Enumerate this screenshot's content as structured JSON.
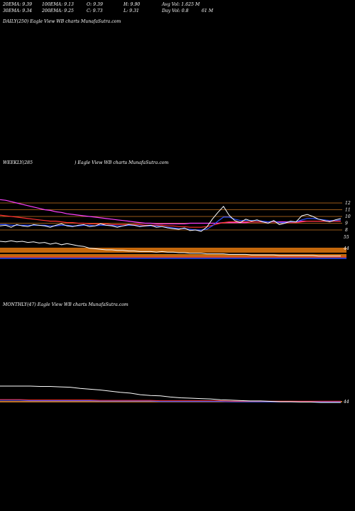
{
  "header": {
    "ema20": "20EMA: 9.39",
    "ema100": "100EMA: 9.13",
    "open": "O: 9.39",
    "high": "H: 9.90",
    "avg_vol": "Avg Vol: 1.625 M",
    "ema30": "30EMA: 9.34",
    "ema200": "200EMA: 9.25",
    "close": "C: 9.73",
    "low": "L: 9.31",
    "day_vol": "Day Vol: 0.8",
    "day_vol_unit": "61 M"
  },
  "panels": {
    "daily_label": "DAILY(250) Eagle  View  WB charts MunafaSutra.com",
    "weekly_label_left": "WEEKLY(285",
    "weekly_label_right": ") Eagle  View  WB charts MunafaSutra.com",
    "monthly_label": "MONTHLY(47) Eagle  View  WB charts MunafaSutra.com"
  },
  "colors": {
    "background": "#000000",
    "price": "#ffffff",
    "ema_blue": "#3050ff",
    "ema_red": "#ff3030",
    "ema_magenta": "#ff40ff",
    "ema_orange": "#ff9933",
    "level_line": "#cc7722"
  },
  "chart_data": [
    {
      "type": "line",
      "panel": "weekly-price",
      "ylabels": [
        "12",
        "11",
        "10",
        "9",
        "8"
      ],
      "yvalues": [
        12,
        11,
        10,
        9,
        8
      ],
      "series": [
        {
          "values": [
            8.6,
            8.7,
            8.4,
            8.8,
            8.6,
            8.5,
            8.8,
            8.7,
            8.6,
            8.4,
            8.7,
            8.9,
            8.6,
            8.5,
            8.7,
            8.8,
            8.5,
            8.6,
            8.9,
            8.7,
            8.6,
            8.4,
            8.6,
            8.8,
            8.7,
            8.5,
            8.6,
            8.7,
            8.4,
            8.5,
            8.3,
            8.2,
            8.1,
            8.3,
            7.9,
            8.0,
            7.8,
            8.4,
            9.6,
            10.6,
            11.5,
            10.2,
            9.4,
            9.1,
            9.6,
            9.3,
            9.5,
            9.2,
            9.0,
            9.4,
            8.8,
            9.0,
            9.3,
            9.2,
            10.1,
            10.3,
            10.0,
            9.6,
            9.4,
            9.2,
            9.5,
            9.7
          ]
        },
        {
          "values": [
            12.5,
            12.4,
            12.2,
            12.0,
            11.8,
            11.6,
            11.4,
            11.2,
            11.0,
            10.9,
            10.7,
            10.6,
            10.4,
            10.3,
            10.2,
            10.1,
            10.0,
            9.9,
            9.8,
            9.7,
            9.6,
            9.5,
            9.4,
            9.3,
            9.2,
            9.1,
            9.0,
            9.0,
            8.9,
            8.9,
            8.9,
            8.9,
            8.9,
            8.9,
            9.0,
            9.0,
            9.0,
            9.0,
            9.0,
            9.0,
            9.1,
            9.1,
            9.1,
            9.1,
            9.1,
            9.2,
            9.2,
            9.2,
            9.2,
            9.2,
            9.2,
            9.2,
            9.2,
            9.2,
            9.3,
            9.3,
            9.3,
            9.3,
            9.3,
            9.3,
            9.3,
            9.3
          ]
        },
        {
          "values": [
            10.2,
            10.1,
            10.0,
            9.9,
            9.8,
            9.7,
            9.6,
            9.5,
            9.4,
            9.3,
            9.3,
            9.2,
            9.1,
            9.1,
            9.0,
            9.0,
            8.9,
            8.9,
            8.9,
            8.9,
            8.8,
            8.8,
            8.8,
            8.8,
            8.8,
            8.8,
            8.7,
            8.7,
            8.7,
            8.7,
            8.6,
            8.6,
            8.5,
            8.5,
            8.4,
            8.4,
            8.4,
            8.5,
            8.7,
            8.9,
            9.1,
            9.2,
            9.2,
            9.2,
            9.2,
            9.2,
            9.2,
            9.2,
            9.2,
            9.2,
            9.1,
            9.1,
            9.1,
            9.1,
            9.2,
            9.3,
            9.3,
            9.3,
            9.3,
            9.3,
            9.3,
            9.3
          ]
        },
        {
          "values": [
            8.8,
            8.8,
            8.7,
            8.7,
            8.7,
            8.7,
            8.7,
            8.7,
            8.7,
            8.6,
            8.6,
            8.7,
            8.7,
            8.6,
            8.6,
            8.7,
            8.7,
            8.6,
            8.7,
            8.7,
            8.7,
            8.6,
            8.6,
            8.7,
            8.7,
            8.6,
            8.6,
            8.6,
            8.6,
            8.5,
            8.4,
            8.3,
            8.2,
            8.2,
            8.1,
            8.0,
            8.0,
            8.1,
            8.6,
            9.3,
            9.9,
            9.9,
            9.6,
            9.4,
            9.4,
            9.4,
            9.4,
            9.3,
            9.2,
            9.3,
            9.1,
            9.1,
            9.2,
            9.2,
            9.5,
            9.7,
            9.7,
            9.6,
            9.5,
            9.4,
            9.4,
            9.5
          ]
        }
      ],
      "levels": [
        12,
        11,
        10,
        9,
        8
      ]
    },
    {
      "type": "line",
      "panel": "weekly-volume",
      "ylabels": [
        "55",
        "44"
      ],
      "series": [
        {
          "values": [
            30,
            29,
            31,
            29,
            30,
            28,
            29,
            27,
            28,
            25,
            27,
            24,
            26,
            24,
            22,
            21,
            18,
            17,
            16,
            15,
            15,
            14,
            14,
            13,
            13,
            12,
            12,
            12,
            11,
            12,
            11,
            11,
            10,
            10,
            9,
            9,
            9,
            8,
            8,
            8,
            8,
            7,
            7,
            7,
            7,
            6,
            6,
            6,
            6,
            6,
            5,
            5,
            5,
            5,
            5,
            5,
            5,
            4,
            4,
            4,
            4,
            4
          ]
        }
      ]
    },
    {
      "type": "line",
      "panel": "monthly",
      "ylabels": [
        "44"
      ],
      "series": [
        {
          "values": [
            40,
            40,
            40,
            40,
            39,
            39,
            38,
            37,
            34,
            32,
            30,
            27,
            24,
            22,
            18,
            16,
            15,
            12,
            10,
            9,
            8,
            7,
            5,
            4,
            3,
            2,
            2,
            1,
            0,
            0,
            -1,
            -1,
            -2,
            -2,
            -2
          ]
        },
        {
          "values": [
            4,
            4,
            4,
            3,
            3,
            3,
            3,
            3,
            3,
            3,
            2,
            2,
            2,
            2,
            2,
            2,
            1,
            1,
            1,
            1,
            1,
            1,
            1,
            0,
            0,
            0,
            0,
            0,
            0,
            0,
            0,
            0,
            0,
            0,
            0
          ]
        }
      ]
    }
  ]
}
